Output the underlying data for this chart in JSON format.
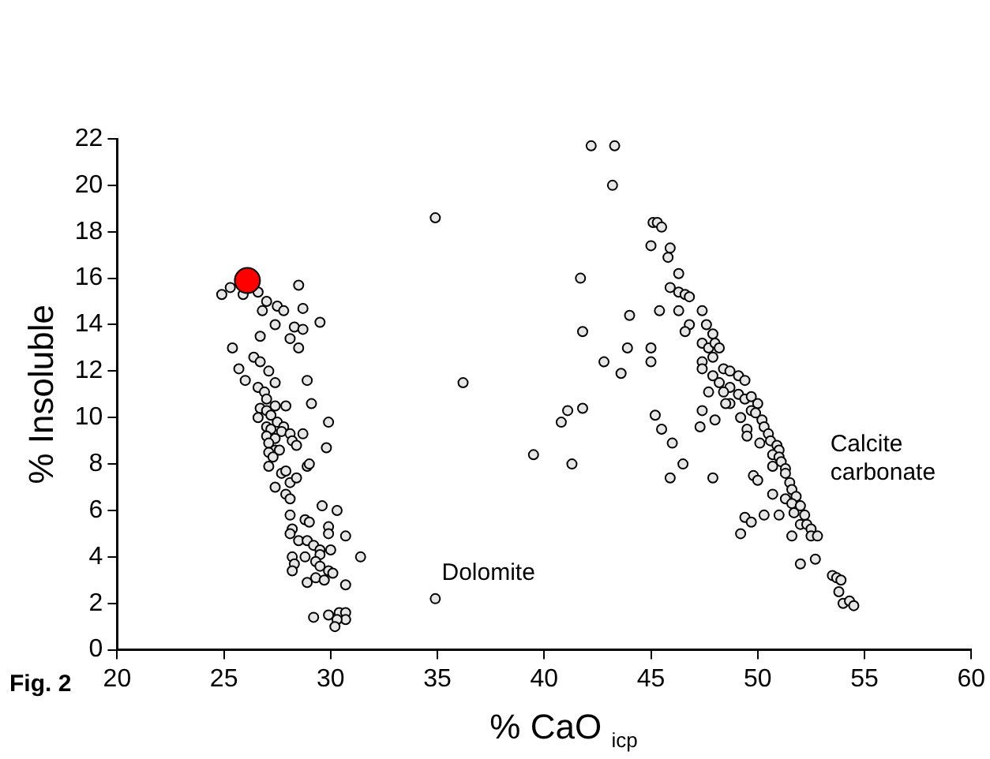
{
  "chart_data": {
    "type": "scatter",
    "xlabel": "% CaO $_{icp}$",
    "ylabel": "% Insoluble",
    "xlim": [
      20,
      60
    ],
    "xticks": [
      20,
      25,
      30,
      35,
      40,
      45,
      50,
      55,
      60
    ],
    "ylim": [
      0,
      22
    ],
    "yticks": [
      0,
      2,
      4,
      6,
      8,
      10,
      12,
      14,
      16,
      18,
      20,
      22
    ],
    "grid": false,
    "legend": false,
    "marker": "circle",
    "annotations": [
      "Dolomite",
      "Calcite\ncarbonate",
      "Fig. 2"
    ],
    "series": [
      {
        "color": "#e6e6e6",
        "x": [
          24.9,
          25.3,
          25.9,
          26.6,
          27.0,
          27.5,
          26.8,
          27.8,
          28.5,
          28.7,
          29.5,
          27.4,
          28.3,
          28.7,
          28.1,
          26.7,
          28.5,
          25.4,
          26.4,
          26.7,
          27.1,
          25.7,
          26.0,
          27.4,
          28.9,
          26.6,
          26.9,
          27.0,
          27.9,
          29.1,
          27.4,
          26.7,
          27.0,
          26.6,
          27.2,
          29.9,
          27.5,
          27.8,
          27.0,
          27.2,
          27.7,
          28.1,
          28.7,
          27.0,
          27.4,
          28.2,
          27.1,
          28.4,
          29.8,
          27.4,
          27.6,
          27.1,
          27.3,
          28.9,
          29.0,
          27.1,
          27.7,
          27.9,
          28.1,
          27.4,
          28.4,
          27.9,
          28.1,
          29.6,
          30.3,
          28.1,
          28.8,
          29.0,
          29.9,
          28.2,
          28.1,
          29.9,
          30.7,
          28.5,
          28.9,
          29.2,
          29.5,
          30.0,
          28.2,
          28.8,
          29.5,
          31.4,
          28.3,
          29.3,
          28.2,
          29.5,
          29.9,
          30.1,
          29.3,
          29.7,
          28.9,
          30.7,
          29.2,
          29.9,
          30.4,
          30.7,
          30.7,
          30.3,
          30.2,
          34.9,
          36.2,
          34.9,
          42.2,
          43.3,
          43.2,
          45.1,
          45.3,
          45.5,
          45.0,
          45.9,
          45.8,
          41.7,
          46.3,
          45.9,
          46.3,
          46.6,
          46.8,
          45.4,
          46.3,
          47.4,
          44.0,
          47.6,
          46.8,
          46.6,
          41.8,
          47.9,
          47.4,
          47.7,
          48.0,
          48.2,
          45.0,
          43.9,
          47.9,
          47.4,
          42.8,
          45.0,
          47.4,
          48.4,
          48.7,
          49.1,
          47.9,
          43.6,
          48.2,
          49.4,
          48.7,
          48.4,
          47.7,
          49.1,
          49.4,
          49.7,
          50.0,
          48.7,
          48.5,
          41.8,
          41.1,
          47.4,
          49.7,
          49.9,
          45.2,
          40.8,
          49.2,
          48.0,
          50.2,
          50.3,
          47.3,
          45.5,
          49.5,
          50.5,
          49.5,
          50.6,
          50.1,
          46.0,
          50.9,
          51.0,
          50.7,
          51.0,
          51.1,
          46.5,
          39.5,
          41.3,
          51.3,
          50.7,
          51.3,
          49.8,
          50.0,
          45.9,
          47.9,
          51.5,
          51.6,
          50.7,
          51.3,
          51.8,
          51.6,
          52.0,
          51.7,
          52.2,
          50.3,
          51.0,
          49.4,
          52.0,
          49.7,
          52.3,
          52.5,
          52.5,
          52.8,
          51.6,
          49.2,
          52.7,
          52.0,
          53.5,
          53.7,
          53.9,
          53.8,
          54.0,
          54.3,
          54.5
        ],
        "values": [
          15.3,
          15.6,
          15.3,
          15.4,
          15.0,
          14.8,
          14.6,
          14.6,
          15.7,
          14.7,
          14.1,
          14.0,
          13.9,
          13.8,
          13.4,
          13.5,
          13.0,
          13.0,
          12.6,
          12.4,
          12.0,
          12.1,
          11.6,
          11.5,
          11.6,
          11.3,
          11.1,
          10.8,
          10.5,
          10.6,
          10.5,
          10.4,
          10.3,
          10.0,
          10.1,
          9.8,
          9.8,
          9.6,
          9.6,
          9.5,
          9.4,
          9.3,
          9.3,
          9.2,
          9.1,
          9.0,
          8.9,
          8.8,
          8.7,
          8.6,
          8.6,
          8.5,
          8.3,
          7.9,
          8.0,
          7.9,
          7.6,
          7.7,
          7.2,
          7.0,
          7.4,
          6.7,
          6.5,
          6.2,
          6.0,
          5.8,
          5.6,
          5.5,
          5.3,
          5.2,
          5.0,
          5.0,
          4.9,
          4.7,
          4.7,
          4.5,
          4.3,
          4.3,
          4.0,
          4.0,
          4.1,
          4.0,
          3.7,
          3.8,
          3.4,
          3.6,
          3.4,
          3.3,
          3.1,
          3.0,
          2.9,
          2.8,
          1.4,
          1.5,
          1.6,
          1.6,
          1.3,
          1.3,
          1.0,
          18.6,
          11.5,
          2.2,
          21.7,
          21.7,
          20.0,
          18.4,
          18.4,
          18.2,
          17.4,
          17.3,
          16.9,
          16.0,
          16.2,
          15.6,
          15.4,
          15.3,
          15.2,
          14.6,
          14.6,
          14.6,
          14.4,
          14.0,
          14.0,
          13.7,
          13.7,
          13.6,
          13.2,
          13.0,
          13.2,
          13.0,
          13.0,
          13.0,
          12.6,
          12.4,
          12.4,
          12.4,
          12.1,
          12.1,
          12.0,
          11.8,
          11.8,
          11.9,
          11.5,
          11.6,
          11.3,
          11.1,
          11.1,
          11.0,
          10.8,
          10.9,
          10.6,
          10.6,
          10.6,
          10.4,
          10.3,
          10.3,
          10.3,
          10.2,
          10.1,
          9.8,
          10.0,
          9.9,
          9.9,
          9.6,
          9.6,
          9.5,
          9.5,
          9.3,
          9.2,
          9.0,
          8.9,
          8.9,
          8.8,
          8.6,
          8.4,
          8.3,
          8.1,
          8.0,
          8.4,
          8.0,
          7.8,
          7.9,
          7.6,
          7.5,
          7.3,
          7.4,
          7.4,
          7.2,
          6.9,
          6.7,
          6.5,
          6.6,
          6.3,
          6.2,
          5.9,
          5.8,
          5.8,
          5.8,
          5.7,
          5.4,
          5.5,
          5.4,
          5.2,
          4.9,
          4.9,
          4.9,
          5.0,
          3.9,
          3.7,
          3.2,
          3.1,
          3.0,
          2.5,
          2.0,
          2.1,
          1.9
        ]
      },
      {
        "color": "#ff0000",
        "x": [
          26.1
        ],
        "values": [
          15.9
        ]
      }
    ]
  }
}
